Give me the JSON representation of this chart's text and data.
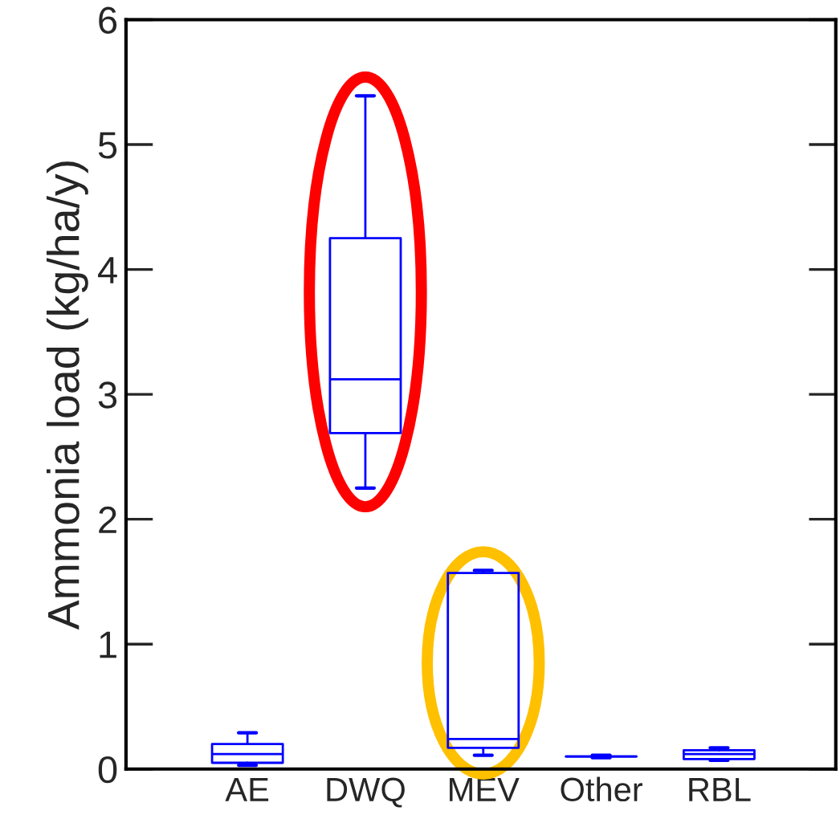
{
  "chart_data": {
    "type": "box",
    "ylabel": "Ammonia load (kg/ha/y)",
    "categories": [
      "AE",
      "DWQ",
      "MEV",
      "Other",
      "RBL"
    ],
    "color": "#0000ff",
    "boxes": [
      {
        "low": 0.03,
        "q1": 0.05,
        "median": 0.12,
        "q3": 0.2,
        "high": 0.29
      },
      {
        "low": 2.25,
        "q1": 2.69,
        "median": 3.12,
        "q3": 4.25,
        "high": 5.39
      },
      {
        "low": 0.11,
        "q1": 0.17,
        "median": 0.24,
        "q3": 1.57,
        "high": 1.59
      },
      {
        "low": 0.09,
        "q1": 0.1,
        "median": 0.1,
        "q3": 0.1,
        "high": 0.11
      },
      {
        "low": 0.07,
        "q1": 0.08,
        "median": 0.12,
        "q3": 0.15,
        "high": 0.17
      }
    ],
    "ylim": [
      0,
      6
    ],
    "yticks": [
      0,
      1,
      2,
      3,
      4,
      5,
      6
    ],
    "grid": false,
    "legend": false
  }
}
